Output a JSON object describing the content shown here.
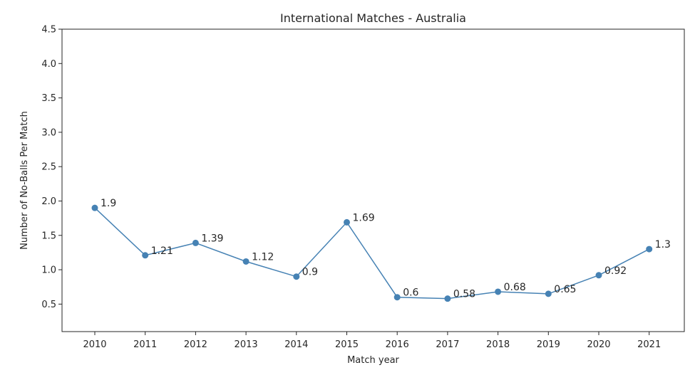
{
  "chart_data": {
    "type": "line",
    "title": "International Matches - Australia",
    "xlabel": "Match year",
    "ylabel": "Number of No-Balls Per Match",
    "x": [
      "2010",
      "2011",
      "2012",
      "2013",
      "2014",
      "2015",
      "2016",
      "2017",
      "2018",
      "2019",
      "2020",
      "2021"
    ],
    "series": [
      {
        "values": [
          1.9,
          1.21,
          1.39,
          1.12,
          0.9,
          1.69,
          0.6,
          0.58,
          0.68,
          0.65,
          0.92,
          1.3
        ],
        "data_labels": [
          "1.9",
          "1.21",
          "1.39",
          "1.12",
          "0.9",
          "1.69",
          "0.6",
          "0.58",
          "0.68",
          "0.65",
          "0.92",
          "1.3"
        ],
        "color": "#4682b4",
        "marker": "circle"
      }
    ],
    "yticks": [
      "0.5",
      "1.0",
      "1.5",
      "2.0",
      "2.5",
      "3.0",
      "3.5",
      "4.0",
      "4.5"
    ],
    "ylim": [
      0.1,
      4.5
    ],
    "grid": false,
    "legend": "none"
  }
}
